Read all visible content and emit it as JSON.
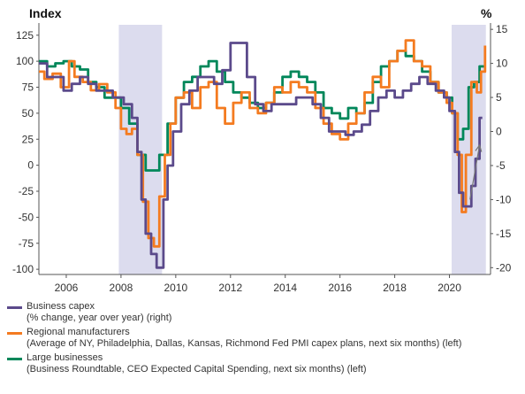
{
  "chart_data": {
    "type": "line",
    "title": "",
    "left_axis": {
      "title": "Index",
      "ylim": [
        -105,
        135
      ],
      "ticks": [
        125,
        100,
        75,
        50,
        25,
        0,
        -25,
        -50,
        -75,
        -100
      ]
    },
    "right_axis": {
      "title": "%",
      "ylim": [
        -21,
        15.67
      ],
      "ticks": [
        15,
        10,
        5,
        0,
        -5,
        -10,
        -15,
        -20
      ]
    },
    "x_axis": {
      "xlim": [
        2005.0,
        2021.5
      ],
      "tick_labels": [
        "2006",
        "2008",
        "2010",
        "2012",
        "2014",
        "2016",
        "2018",
        "2020"
      ],
      "tick_values": [
        2006,
        2008,
        2010,
        2012,
        2014,
        2016,
        2018,
        2020
      ]
    },
    "recessions": [
      [
        2007.92,
        2009.5
      ],
      [
        2020.08,
        2021.33
      ]
    ],
    "annotation": {
      "type": "arrow",
      "from": [
        2020.75,
        -10
      ],
      "to": [
        2021.1,
        -2
      ]
    },
    "legend_placement": "bottom",
    "series": [
      {
        "name": "Business capex",
        "detail": "(% change, year over year) (right)",
        "axis": "right",
        "color": "#5B4A8B",
        "points": [
          [
            2005.0,
            10
          ],
          [
            2005.3,
            8
          ],
          [
            2005.6,
            8
          ],
          [
            2005.9,
            6
          ],
          [
            2006.2,
            7
          ],
          [
            2006.5,
            8
          ],
          [
            2006.8,
            7
          ],
          [
            2007.1,
            6
          ],
          [
            2007.4,
            6
          ],
          [
            2007.7,
            5
          ],
          [
            2007.9,
            5
          ],
          [
            2008.1,
            4
          ],
          [
            2008.4,
            2
          ],
          [
            2008.6,
            -3
          ],
          [
            2008.75,
            -10
          ],
          [
            2008.9,
            -15
          ],
          [
            2009.1,
            -18
          ],
          [
            2009.3,
            -20
          ],
          [
            2009.4,
            -20
          ],
          [
            2009.55,
            -10
          ],
          [
            2009.7,
            -5
          ],
          [
            2009.9,
            0
          ],
          [
            2010.2,
            4
          ],
          [
            2010.5,
            6
          ],
          [
            2010.8,
            8
          ],
          [
            2011.1,
            8
          ],
          [
            2011.4,
            7
          ],
          [
            2011.7,
            9
          ],
          [
            2012.0,
            13
          ],
          [
            2012.3,
            13
          ],
          [
            2012.6,
            8
          ],
          [
            2012.9,
            4
          ],
          [
            2013.2,
            3
          ],
          [
            2013.5,
            4
          ],
          [
            2013.8,
            4
          ],
          [
            2014.1,
            4
          ],
          [
            2014.4,
            5
          ],
          [
            2014.7,
            5
          ],
          [
            2015.0,
            4
          ],
          [
            2015.3,
            2
          ],
          [
            2015.6,
            0
          ],
          [
            2015.9,
            0
          ],
          [
            2016.2,
            -0.5
          ],
          [
            2016.5,
            0
          ],
          [
            2016.8,
            1
          ],
          [
            2017.1,
            3
          ],
          [
            2017.4,
            5
          ],
          [
            2017.7,
            6
          ],
          [
            2018.0,
            5
          ],
          [
            2018.3,
            6
          ],
          [
            2018.6,
            7
          ],
          [
            2018.9,
            8
          ],
          [
            2019.2,
            7
          ],
          [
            2019.5,
            6
          ],
          [
            2019.8,
            5
          ],
          [
            2020.0,
            3
          ],
          [
            2020.2,
            -3
          ],
          [
            2020.35,
            -9
          ],
          [
            2020.5,
            -11
          ],
          [
            2020.65,
            -11
          ],
          [
            2020.8,
            -8
          ],
          [
            2020.95,
            -4
          ],
          [
            2021.1,
            2
          ],
          [
            2021.2,
            2
          ]
        ]
      },
      {
        "name": "Regional manufacturers",
        "detail": "(Average of NY, Philadelphia, Dallas, Kansas, Richmond Fed PMI capex plans, next six months) (left)",
        "axis": "left",
        "color": "#F47B20",
        "points": [
          [
            2005.0,
            90
          ],
          [
            2005.2,
            83
          ],
          [
            2005.5,
            88
          ],
          [
            2005.8,
            75
          ],
          [
            2006.1,
            100
          ],
          [
            2006.3,
            85
          ],
          [
            2006.6,
            80
          ],
          [
            2006.9,
            72
          ],
          [
            2007.2,
            78
          ],
          [
            2007.5,
            70
          ],
          [
            2007.8,
            55
          ],
          [
            2008.0,
            35
          ],
          [
            2008.2,
            30
          ],
          [
            2008.4,
            35
          ],
          [
            2008.6,
            10
          ],
          [
            2008.8,
            -35
          ],
          [
            2009.0,
            -70
          ],
          [
            2009.2,
            -78
          ],
          [
            2009.4,
            -30
          ],
          [
            2009.6,
            10
          ],
          [
            2009.8,
            40
          ],
          [
            2010.0,
            65
          ],
          [
            2010.3,
            70
          ],
          [
            2010.6,
            55
          ],
          [
            2010.9,
            75
          ],
          [
            2011.2,
            80
          ],
          [
            2011.5,
            55
          ],
          [
            2011.8,
            40
          ],
          [
            2012.1,
            60
          ],
          [
            2012.4,
            70
          ],
          [
            2012.7,
            55
          ],
          [
            2013.0,
            50
          ],
          [
            2013.3,
            60
          ],
          [
            2013.6,
            75
          ],
          [
            2013.9,
            70
          ],
          [
            2014.2,
            80
          ],
          [
            2014.5,
            75
          ],
          [
            2014.8,
            70
          ],
          [
            2015.1,
            55
          ],
          [
            2015.4,
            40
          ],
          [
            2015.7,
            30
          ],
          [
            2016.0,
            25
          ],
          [
            2016.3,
            40
          ],
          [
            2016.6,
            50
          ],
          [
            2016.9,
            70
          ],
          [
            2017.2,
            85
          ],
          [
            2017.5,
            75
          ],
          [
            2017.8,
            100
          ],
          [
            2018.1,
            110
          ],
          [
            2018.4,
            120
          ],
          [
            2018.7,
            100
          ],
          [
            2019.0,
            95
          ],
          [
            2019.3,
            80
          ],
          [
            2019.6,
            70
          ],
          [
            2019.9,
            60
          ],
          [
            2020.1,
            50
          ],
          [
            2020.3,
            10
          ],
          [
            2020.45,
            -45
          ],
          [
            2020.6,
            10
          ],
          [
            2020.8,
            80
          ],
          [
            2021.0,
            70
          ],
          [
            2021.15,
            90
          ],
          [
            2021.3,
            115
          ]
        ]
      },
      {
        "name": "Large businesses",
        "detail": "(Business Roundtable, CEO Expected Capital Spending, next six months) (left)",
        "axis": "left",
        "color": "#00875A",
        "points": [
          [
            2005.0,
            100
          ],
          [
            2005.3,
            95
          ],
          [
            2005.6,
            98
          ],
          [
            2005.9,
            100
          ],
          [
            2006.2,
            95
          ],
          [
            2006.5,
            92
          ],
          [
            2006.8,
            80
          ],
          [
            2007.1,
            75
          ],
          [
            2007.4,
            65
          ],
          [
            2007.7,
            65
          ],
          [
            2008.0,
            55
          ],
          [
            2008.3,
            40
          ],
          [
            2008.6,
            10
          ],
          [
            2008.9,
            -5
          ],
          [
            2009.2,
            -5
          ],
          [
            2009.4,
            10
          ],
          [
            2009.7,
            40
          ],
          [
            2010.0,
            65
          ],
          [
            2010.3,
            80
          ],
          [
            2010.6,
            85
          ],
          [
            2010.9,
            95
          ],
          [
            2011.2,
            100
          ],
          [
            2011.5,
            90
          ],
          [
            2011.8,
            80
          ],
          [
            2012.1,
            70
          ],
          [
            2012.4,
            65
          ],
          [
            2012.7,
            60
          ],
          [
            2013.0,
            55
          ],
          [
            2013.3,
            60
          ],
          [
            2013.6,
            70
          ],
          [
            2013.9,
            85
          ],
          [
            2014.2,
            90
          ],
          [
            2014.5,
            85
          ],
          [
            2014.8,
            80
          ],
          [
            2015.1,
            70
          ],
          [
            2015.4,
            55
          ],
          [
            2015.7,
            50
          ],
          [
            2016.0,
            45
          ],
          [
            2016.3,
            55
          ],
          [
            2016.6,
            50
          ],
          [
            2016.9,
            60
          ],
          [
            2017.2,
            80
          ],
          [
            2017.5,
            95
          ],
          [
            2017.8,
            100
          ],
          [
            2018.1,
            110
          ],
          [
            2018.4,
            105
          ],
          [
            2018.7,
            100
          ],
          [
            2019.0,
            90
          ],
          [
            2019.3,
            80
          ],
          [
            2019.6,
            70
          ],
          [
            2019.9,
            65
          ],
          [
            2020.1,
            50
          ],
          [
            2020.3,
            25
          ],
          [
            2020.5,
            35
          ],
          [
            2020.7,
            75
          ],
          [
            2020.9,
            80
          ],
          [
            2021.1,
            95
          ],
          [
            2021.3,
            95
          ]
        ]
      }
    ]
  }
}
